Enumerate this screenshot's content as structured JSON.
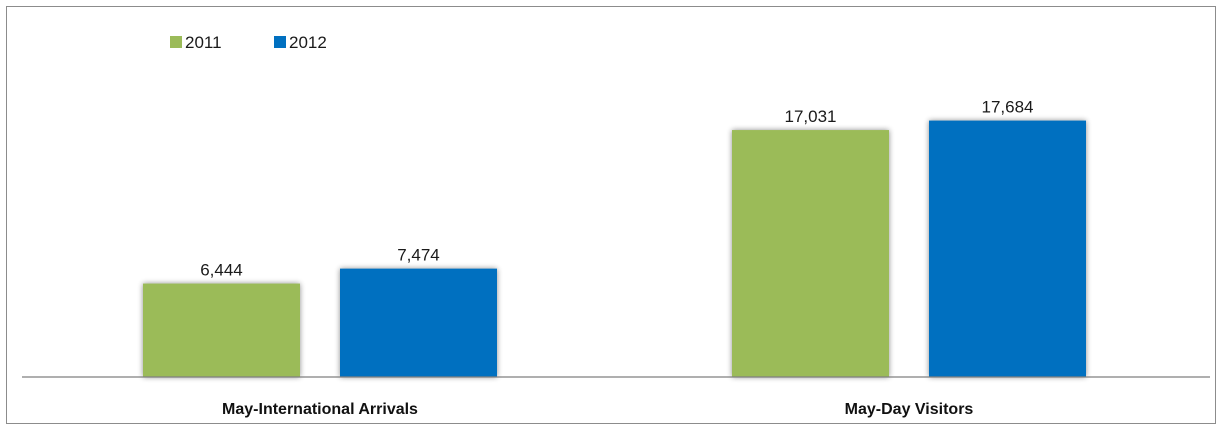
{
  "chart_data": {
    "type": "bar",
    "categories": [
      "May-International Arrivals",
      "May-Day Visitors"
    ],
    "series": [
      {
        "name": "2011",
        "values": [
          6444,
          17031
        ],
        "labels": [
          "6,444",
          "17,031"
        ],
        "color": "#9bbb59"
      },
      {
        "name": "2012",
        "values": [
          7474,
          17684
        ],
        "labels": [
          "7,474",
          "17,684"
        ],
        "color": "#0070c0"
      }
    ],
    "title": "",
    "xlabel": "",
    "ylabel": "",
    "ylim": [
      0,
      20000
    ],
    "grid": false,
    "legend": "top-left"
  }
}
